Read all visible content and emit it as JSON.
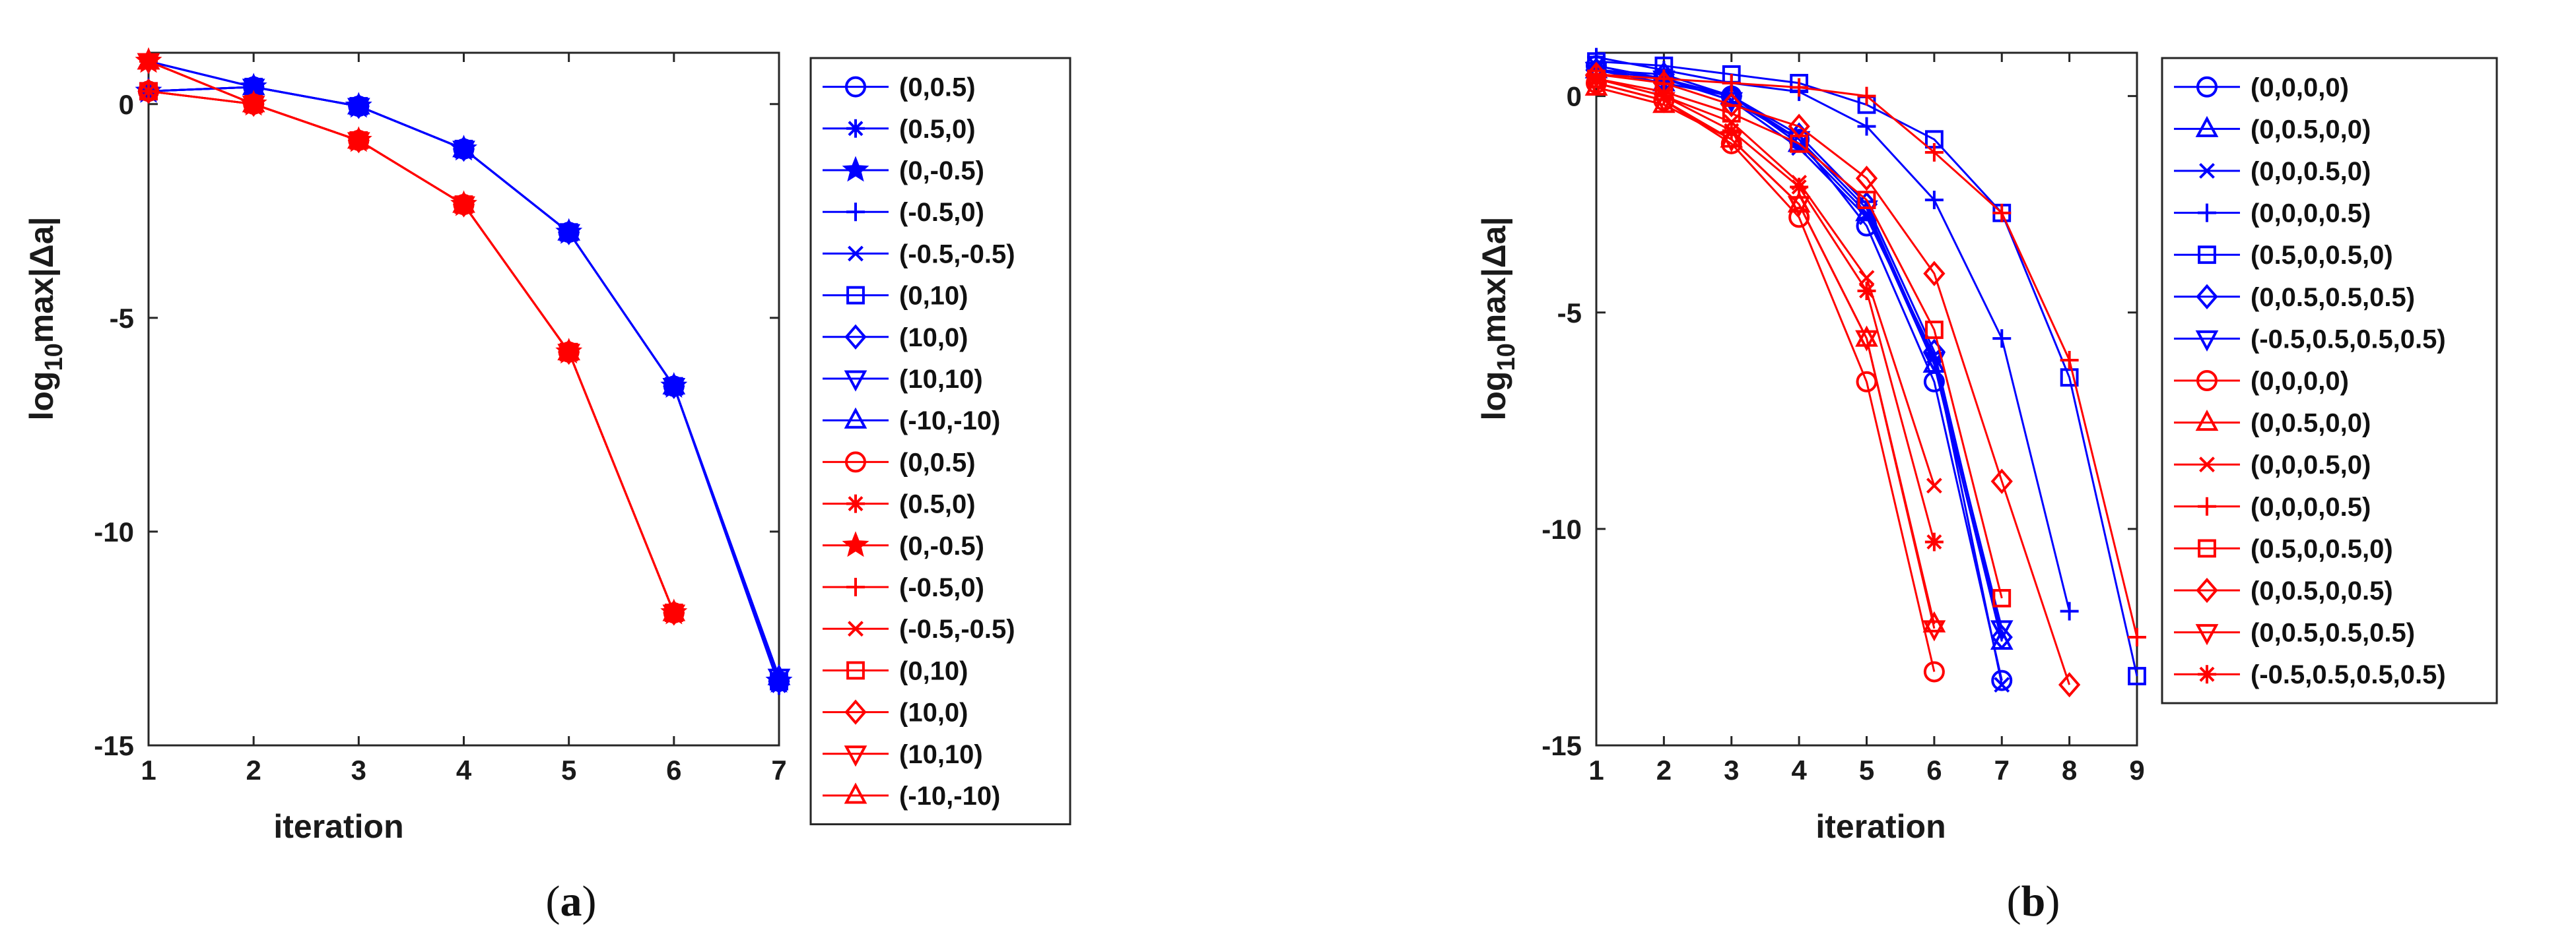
{
  "colors": {
    "blue": "#0000ff",
    "red": "#ff0000",
    "axis": "#262626"
  },
  "chart_data": [
    {
      "type": "line",
      "caption": "a",
      "xlabel": "iteration",
      "ylabel_prefix": "log",
      "ylabel_sub": "10",
      "ylabel_suffix": "max|Δa|",
      "xlim": [
        1,
        7
      ],
      "ylim": [
        -15,
        1.2
      ],
      "xticks": [
        1,
        2,
        3,
        4,
        5,
        6,
        7
      ],
      "yticks": [
        0,
        -5,
        -10,
        -15
      ],
      "series": [
        {
          "name": "(0,0.5)",
          "color": "blue",
          "marker": "circle",
          "x": [
            1,
            2,
            3,
            4,
            5,
            6,
            7
          ],
          "y": [
            0.3,
            0.4,
            -0.05,
            -1.05,
            -3.0,
            -6.6,
            -13.5
          ]
        },
        {
          "name": "(0.5,0)",
          "color": "blue",
          "marker": "asterisk",
          "x": [
            1,
            2,
            3,
            4,
            5,
            6,
            7
          ],
          "y": [
            0.3,
            0.4,
            -0.05,
            -1.05,
            -3.0,
            -6.6,
            -13.6
          ]
        },
        {
          "name": "(0,-0.5)",
          "color": "blue",
          "marker": "star",
          "x": [
            1,
            2,
            3,
            4,
            5,
            6,
            7
          ],
          "y": [
            0.3,
            0.4,
            -0.05,
            -1.05,
            -3.0,
            -6.6,
            -13.5
          ]
        },
        {
          "name": "(-0.5,0)",
          "color": "blue",
          "marker": "plus",
          "x": [
            1,
            2,
            3,
            4,
            5,
            6,
            7
          ],
          "y": [
            1.0,
            0.4,
            -0.05,
            -1.05,
            -3.0,
            -6.6,
            -13.5
          ]
        },
        {
          "name": "(-0.5,-0.5)",
          "color": "blue",
          "marker": "x",
          "x": [
            1,
            2,
            3,
            4,
            5,
            6,
            7
          ],
          "y": [
            1.0,
            0.4,
            -0.05,
            -1.05,
            -3.0,
            -6.6,
            -13.5
          ]
        },
        {
          "name": "(0,10)",
          "color": "blue",
          "marker": "square",
          "x": [
            1,
            2,
            3,
            4,
            5,
            6,
            7
          ],
          "y": [
            0.3,
            0.4,
            -0.05,
            -1.05,
            -3.0,
            -6.6,
            -13.5
          ]
        },
        {
          "name": "(10,0)",
          "color": "blue",
          "marker": "diamond",
          "x": [
            1,
            2,
            3,
            4,
            5,
            6,
            7
          ],
          "y": [
            0.3,
            0.4,
            -0.05,
            -1.05,
            -3.0,
            -6.6,
            -13.5
          ]
        },
        {
          "name": "(10,10)",
          "color": "blue",
          "marker": "triangle-down",
          "x": [
            1,
            2,
            3,
            4,
            5,
            6,
            7
          ],
          "y": [
            1.0,
            0.4,
            -0.05,
            -1.05,
            -3.0,
            -6.6,
            -13.4
          ]
        },
        {
          "name": "(-10,-10)",
          "color": "blue",
          "marker": "triangle-up",
          "x": [
            1,
            2,
            3,
            4,
            5,
            6,
            7
          ],
          "y": [
            1.0,
            0.4,
            -0.05,
            -1.05,
            -3.0,
            -6.6,
            -13.4
          ]
        },
        {
          "name": "(0,0.5)",
          "color": "red",
          "marker": "circle",
          "x": [
            1,
            2,
            3,
            4,
            5,
            6
          ],
          "y": [
            0.3,
            0.0,
            -0.85,
            -2.35,
            -5.8,
            -11.9
          ]
        },
        {
          "name": "(0.5,0)",
          "color": "red",
          "marker": "asterisk",
          "x": [
            1,
            2,
            3,
            4,
            5,
            6
          ],
          "y": [
            0.3,
            0.0,
            -0.85,
            -2.35,
            -5.8,
            -11.9
          ]
        },
        {
          "name": "(0,-0.5)",
          "color": "red",
          "marker": "star",
          "x": [
            1,
            2,
            3,
            4,
            5,
            6
          ],
          "y": [
            1.0,
            0.0,
            -0.85,
            -2.35,
            -5.8,
            -11.9
          ]
        },
        {
          "name": "(-0.5,0)",
          "color": "red",
          "marker": "plus",
          "x": [
            1,
            2,
            3,
            4,
            5,
            6
          ],
          "y": [
            1.0,
            0.0,
            -0.85,
            -2.35,
            -5.8,
            -11.9
          ]
        },
        {
          "name": "(-0.5,-0.5)",
          "color": "red",
          "marker": "x",
          "x": [
            1,
            2,
            3,
            4,
            5,
            6
          ],
          "y": [
            1.0,
            0.0,
            -0.85,
            -2.35,
            -5.8,
            -11.9
          ]
        },
        {
          "name": "(0,10)",
          "color": "red",
          "marker": "square",
          "x": [
            1,
            2,
            3,
            4,
            5,
            6
          ],
          "y": [
            0.3,
            0.0,
            -0.85,
            -2.35,
            -5.8,
            -11.9
          ]
        },
        {
          "name": "(10,0)",
          "color": "red",
          "marker": "diamond",
          "x": [
            1,
            2,
            3,
            4,
            5,
            6
          ],
          "y": [
            0.3,
            0.0,
            -0.85,
            -2.35,
            -5.8,
            -11.9
          ]
        },
        {
          "name": "(10,10)",
          "color": "red",
          "marker": "triangle-down",
          "x": [
            1,
            2,
            3,
            4,
            5,
            6
          ],
          "y": [
            1.0,
            0.0,
            -0.85,
            -2.35,
            -5.8,
            -11.9
          ]
        },
        {
          "name": "(-10,-10)",
          "color": "red",
          "marker": "triangle-up",
          "x": [
            1,
            2,
            3,
            4,
            5,
            6
          ],
          "y": [
            1.0,
            0.0,
            -0.85,
            -2.35,
            -5.8,
            -11.9
          ]
        }
      ]
    },
    {
      "type": "line",
      "caption": "b",
      "xlabel": "iteration",
      "ylabel_prefix": "log",
      "ylabel_sub": "10",
      "ylabel_suffix": "max|Δa|",
      "xlim": [
        1,
        9
      ],
      "ylim": [
        -15,
        1
      ],
      "xticks": [
        1,
        2,
        3,
        4,
        5,
        6,
        7,
        8,
        9
      ],
      "yticks": [
        0,
        -5,
        -10,
        -15
      ],
      "series": [
        {
          "name": "(0,0,0,0)",
          "color": "blue",
          "marker": "circle",
          "x": [
            1,
            2,
            3,
            4,
            5,
            6,
            7
          ],
          "y": [
            0.7,
            0.4,
            0.0,
            -1.0,
            -3.0,
            -6.6,
            -13.5
          ]
        },
        {
          "name": "(0,0.5,0,0)",
          "color": "blue",
          "marker": "triangle-up",
          "x": [
            1,
            2,
            3,
            4,
            5,
            6,
            7
          ],
          "y": [
            0.6,
            0.3,
            0.0,
            -1.1,
            -2.7,
            -6.2,
            -12.6
          ]
        },
        {
          "name": "(0,0,0.5,0)",
          "color": "blue",
          "marker": "x",
          "x": [
            1,
            2,
            3,
            4,
            5,
            6,
            7
          ],
          "y": [
            0.7,
            0.4,
            -0.1,
            -1.2,
            -2.8,
            -6.0,
            -13.6
          ]
        },
        {
          "name": "(0,0,0,0.5)",
          "color": "blue",
          "marker": "plus",
          "x": [
            1,
            2,
            3,
            4,
            5,
            6,
            7,
            8
          ],
          "y": [
            0.9,
            0.6,
            0.3,
            0.1,
            -0.7,
            -2.4,
            -5.6,
            -11.9
          ]
        },
        {
          "name": "(0.5,0,0.5,0)",
          "color": "blue",
          "marker": "square",
          "x": [
            1,
            2,
            3,
            4,
            5,
            6,
            7,
            8,
            9
          ],
          "y": [
            0.8,
            0.7,
            0.5,
            0.3,
            -0.2,
            -1.0,
            -2.7,
            -6.5,
            -13.4
          ]
        },
        {
          "name": "(0,0.5,0.5,0.5)",
          "color": "blue",
          "marker": "diamond",
          "x": [
            1,
            2,
            3,
            4,
            5,
            6,
            7
          ],
          "y": [
            0.6,
            0.5,
            0.0,
            -0.9,
            -2.5,
            -5.9,
            -12.5
          ]
        },
        {
          "name": "(-0.5,0.5,0.5,0.5)",
          "color": "blue",
          "marker": "triangle-down",
          "x": [
            1,
            2,
            3,
            4,
            5,
            6,
            7
          ],
          "y": [
            0.6,
            0.4,
            -0.1,
            -1.0,
            -2.6,
            -6.1,
            -12.3
          ]
        },
        {
          "name": "(0,0,0,0)",
          "color": "red",
          "marker": "circle",
          "x": [
            1,
            2,
            3,
            4,
            5,
            6
          ],
          "y": [
            0.3,
            -0.1,
            -1.1,
            -2.8,
            -6.6,
            -13.3
          ]
        },
        {
          "name": "(0,0.5,0,0)",
          "color": "red",
          "marker": "triangle-up",
          "x": [
            1,
            2,
            3,
            4,
            5,
            6
          ],
          "y": [
            0.2,
            -0.2,
            -1.0,
            -2.5,
            -5.6,
            -12.2
          ]
        },
        {
          "name": "(0,0,0.5,0)",
          "color": "red",
          "marker": "x",
          "x": [
            1,
            2,
            3,
            4,
            5,
            6
          ],
          "y": [
            0.4,
            0.0,
            -0.6,
            -2.0,
            -4.2,
            -9.0
          ]
        },
        {
          "name": "(0,0,0,0.5)",
          "color": "red",
          "marker": "plus",
          "x": [
            1,
            2,
            3,
            4,
            5,
            6,
            7,
            8,
            9
          ],
          "y": [
            0.5,
            0.4,
            0.3,
            0.2,
            0.0,
            -1.3,
            -2.7,
            -6.1,
            -12.5
          ]
        },
        {
          "name": "(0.5,0,0.5,0)",
          "color": "red",
          "marker": "square",
          "x": [
            1,
            2,
            3,
            4,
            5,
            6,
            7
          ],
          "y": [
            0.4,
            0.1,
            -0.4,
            -1.1,
            -2.4,
            -5.4,
            -11.6
          ]
        },
        {
          "name": "(0,0.5,0,0.5)",
          "color": "red",
          "marker": "diamond",
          "x": [
            1,
            2,
            3,
            4,
            5,
            6,
            7,
            8
          ],
          "y": [
            0.5,
            0.3,
            -0.2,
            -0.7,
            -1.9,
            -4.1,
            -8.9,
            -13.6
          ]
        },
        {
          "name": "(0,0.5,0.5,0.5)",
          "color": "red",
          "marker": "triangle-down",
          "x": [
            1,
            2,
            3,
            4,
            5,
            6
          ],
          "y": [
            0.3,
            -0.1,
            -1.0,
            -2.5,
            -5.6,
            -12.3
          ]
        },
        {
          "name": "(-0.5,0.5,0.5,0.5)",
          "color": "red",
          "marker": "asterisk",
          "x": [
            1,
            2,
            3,
            4,
            5,
            6
          ],
          "y": [
            0.4,
            0.0,
            -0.8,
            -2.1,
            -4.5,
            -10.3
          ]
        }
      ]
    }
  ]
}
